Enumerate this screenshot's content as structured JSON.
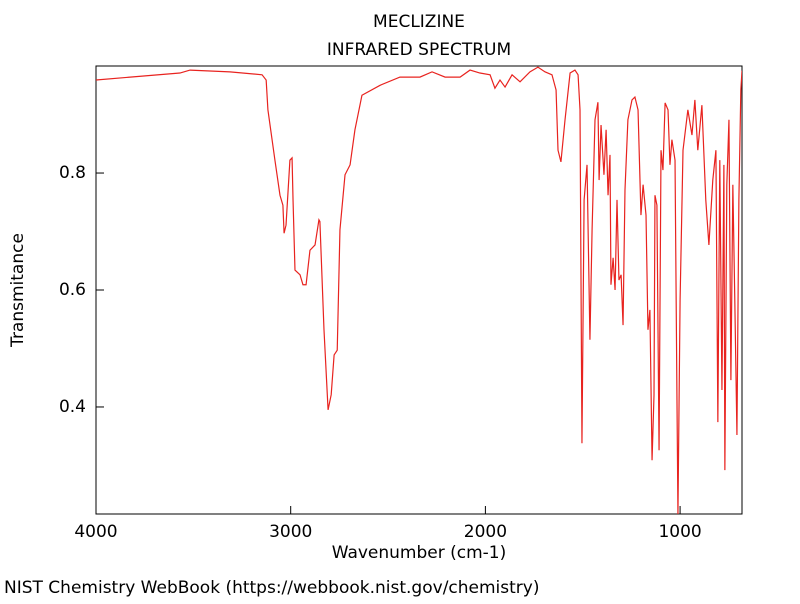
{
  "chart_data": {
    "type": "line",
    "title": "MECLIZINE",
    "subtitle": "INFRARED SPECTRUM",
    "x_label": "Wavenumber (cm-1)",
    "y_label": "Transmitance",
    "footer": "NIST Chemistry WebBook (https://webbook.nist.gov/chemistry)",
    "xlim": [
      4000,
      682
    ],
    "ylim": [
      0.217,
      0.983
    ],
    "xticks": [
      4000,
      3000,
      2000,
      1000
    ],
    "yticks": [
      0.4,
      0.6,
      0.8
    ],
    "x": [
      4000,
      3825,
      3569,
      3517,
      3312,
      3147,
      3126,
      3117,
      3081,
      3055,
      3040,
      3034,
      3024,
      3004,
      2993,
      2988,
      2978,
      2952,
      2937,
      2921,
      2901,
      2875,
      2855,
      2850,
      2829,
      2808,
      2792,
      2777,
      2761,
      2747,
      2721,
      2695,
      2670,
      2634,
      2541,
      2439,
      2336,
      2274,
      2207,
      2130,
      2079,
      2028,
      1976,
      1951,
      1925,
      1899,
      1863,
      1822,
      1771,
      1730,
      1694,
      1658,
      1637,
      1627,
      1612,
      1591,
      1565,
      1540,
      1524,
      1514,
      1504,
      1493,
      1478,
      1463,
      1452,
      1437,
      1422,
      1416,
      1406,
      1391,
      1380,
      1370,
      1360,
      1355,
      1344,
      1334,
      1324,
      1314,
      1303,
      1293,
      1283,
      1268,
      1247,
      1232,
      1216,
      1201,
      1190,
      1175,
      1165,
      1155,
      1144,
      1134,
      1129,
      1119,
      1108,
      1098,
      1088,
      1077,
      1062,
      1052,
      1042,
      1026,
      1016,
      1011,
      1000,
      985,
      960,
      939,
      924,
      909,
      888,
      868,
      852,
      832,
      816,
      806,
      796,
      785,
      775,
      770,
      760,
      749,
      739,
      729,
      719,
      708,
      698,
      688,
      682
    ],
    "series": [
      {
        "name": "MECLIZINE",
        "color": "#e8231f",
        "values": [
          0.959,
          0.964,
          0.971,
          0.976,
          0.973,
          0.968,
          0.959,
          0.908,
          0.822,
          0.762,
          0.745,
          0.697,
          0.711,
          0.822,
          0.826,
          0.754,
          0.634,
          0.626,
          0.609,
          0.609,
          0.668,
          0.677,
          0.72,
          0.717,
          0.532,
          0.395,
          0.421,
          0.489,
          0.497,
          0.703,
          0.797,
          0.814,
          0.874,
          0.933,
          0.95,
          0.964,
          0.964,
          0.973,
          0.964,
          0.964,
          0.976,
          0.971,
          0.968,
          0.945,
          0.959,
          0.947,
          0.968,
          0.956,
          0.973,
          0.981,
          0.973,
          0.968,
          0.942,
          0.839,
          0.819,
          0.891,
          0.971,
          0.976,
          0.968,
          0.908,
          0.338,
          0.754,
          0.814,
          0.515,
          0.703,
          0.891,
          0.921,
          0.788,
          0.882,
          0.797,
          0.874,
          0.762,
          0.831,
          0.609,
          0.655,
          0.6,
          0.754,
          0.617,
          0.626,
          0.54,
          0.771,
          0.891,
          0.925,
          0.93,
          0.908,
          0.728,
          0.78,
          0.728,
          0.532,
          0.566,
          0.309,
          0.42,
          0.762,
          0.745,
          0.326,
          0.839,
          0.805,
          0.92,
          0.908,
          0.814,
          0.857,
          0.822,
          0.412,
          0.217,
          0.583,
          0.839,
          0.908,
          0.865,
          0.925,
          0.839,
          0.916,
          0.754,
          0.677,
          0.788,
          0.839,
          0.374,
          0.822,
          0.429,
          0.814,
          0.292,
          0.78,
          0.891,
          0.446,
          0.78,
          0.583,
          0.352,
          0.754,
          0.942,
          0.975
        ]
      }
    ]
  }
}
